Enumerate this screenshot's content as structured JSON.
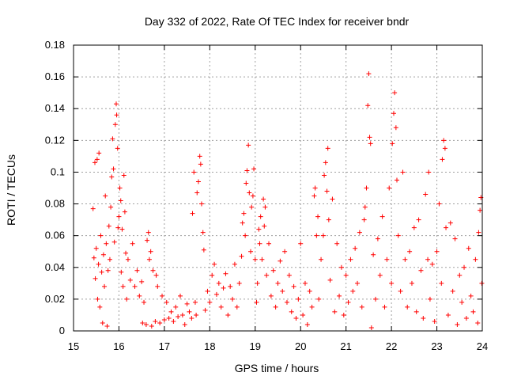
{
  "chart_data": {
    "type": "scatter",
    "title": "Day 332 of 2022, Rate Of TEC Index for receiver bndr",
    "xlabel": "GPS time / hours",
    "ylabel": "ROTI / TECUs",
    "xlim": [
      15,
      24
    ],
    "ylim": [
      0,
      0.18
    ],
    "x_ticks": [
      "15",
      "16",
      "17",
      "18",
      "19",
      "20",
      "21",
      "22",
      "23",
      "24"
    ],
    "y_ticks": [
      "0",
      "0.02",
      "0.04",
      "0.06",
      "0.08",
      "0.1",
      "0.12",
      "0.14",
      "0.16",
      "0.18"
    ],
    "grid": true,
    "marker": "+",
    "color": "#ff0000",
    "points": [
      [
        15.43,
        0.077
      ],
      [
        15.45,
        0.046
      ],
      [
        15.47,
        0.106
      ],
      [
        15.48,
        0.033
      ],
      [
        15.5,
        0.052
      ],
      [
        15.52,
        0.108
      ],
      [
        15.53,
        0.02
      ],
      [
        15.55,
        0.042
      ],
      [
        15.56,
        0.112
      ],
      [
        15.58,
        0.015
      ],
      [
        15.6,
        0.06
      ],
      [
        15.62,
        0.037
      ],
      [
        15.64,
        0.005
      ],
      [
        15.66,
        0.048
      ],
      [
        15.68,
        0.028
      ],
      [
        15.7,
        0.085
      ],
      [
        15.72,
        0.055
      ],
      [
        15.74,
        0.003
      ],
      [
        15.76,
        0.038
      ],
      [
        15.78,
        0.066
      ],
      [
        15.8,
        0.045
      ],
      [
        15.82,
        0.078
      ],
      [
        15.84,
        0.097
      ],
      [
        15.86,
        0.121
      ],
      [
        15.88,
        0.102
      ],
      [
        15.9,
        0.056
      ],
      [
        15.92,
        0.13
      ],
      [
        15.94,
        0.143
      ],
      [
        15.95,
        0.136
      ],
      [
        15.97,
        0.115
      ],
      [
        15.98,
        0.065
      ],
      [
        16.0,
        0.072
      ],
      [
        16.02,
        0.09
      ],
      [
        16.04,
        0.082
      ],
      [
        16.05,
        0.037
      ],
      [
        16.07,
        0.064
      ],
      [
        16.09,
        0.028
      ],
      [
        16.11,
        0.098
      ],
      [
        16.13,
        0.075
      ],
      [
        16.15,
        0.049
      ],
      [
        16.17,
        0.02
      ],
      [
        16.2,
        0.045
      ],
      [
        16.25,
        0.032
      ],
      [
        16.3,
        0.055
      ],
      [
        16.35,
        0.028
      ],
      [
        16.4,
        0.038
      ],
      [
        16.45,
        0.022
      ],
      [
        16.5,
        0.031
      ],
      [
        16.52,
        0.005
      ],
      [
        16.55,
        0.018
      ],
      [
        16.6,
        0.004
      ],
      [
        16.62,
        0.057
      ],
      [
        16.65,
        0.062
      ],
      [
        16.67,
        0.045
      ],
      [
        16.7,
        0.05
      ],
      [
        16.72,
        0.003
      ],
      [
        16.75,
        0.038
      ],
      [
        16.8,
        0.006
      ],
      [
        16.82,
        0.035
      ],
      [
        16.85,
        0.028
      ],
      [
        16.9,
        0.005
      ],
      [
        16.95,
        0.022
      ],
      [
        17.0,
        0.007
      ],
      [
        17.05,
        0.018
      ],
      [
        17.1,
        0.008
      ],
      [
        17.15,
        0.012
      ],
      [
        17.2,
        0.006
      ],
      [
        17.25,
        0.015
      ],
      [
        17.3,
        0.009
      ],
      [
        17.35,
        0.022
      ],
      [
        17.4,
        0.01
      ],
      [
        17.45,
        0.004
      ],
      [
        17.5,
        0.017
      ],
      [
        17.55,
        0.012
      ],
      [
        17.6,
        0.008
      ],
      [
        17.62,
        0.074
      ],
      [
        17.65,
        0.1
      ],
      [
        17.68,
        0.018
      ],
      [
        17.7,
        0.01
      ],
      [
        17.72,
        0.087
      ],
      [
        17.75,
        0.094
      ],
      [
        17.78,
        0.11
      ],
      [
        17.8,
        0.105
      ],
      [
        17.82,
        0.08
      ],
      [
        17.85,
        0.062
      ],
      [
        17.87,
        0.051
      ],
      [
        17.9,
        0.013
      ],
      [
        17.95,
        0.025
      ],
      [
        18.0,
        0.018
      ],
      [
        18.05,
        0.035
      ],
      [
        18.1,
        0.042
      ],
      [
        18.15,
        0.023
      ],
      [
        18.2,
        0.03
      ],
      [
        18.25,
        0.015
      ],
      [
        18.3,
        0.027
      ],
      [
        18.35,
        0.036
      ],
      [
        18.4,
        0.01
      ],
      [
        18.45,
        0.028
      ],
      [
        18.5,
        0.02
      ],
      [
        18.55,
        0.042
      ],
      [
        18.6,
        0.015
      ],
      [
        18.65,
        0.03
      ],
      [
        18.7,
        0.047
      ],
      [
        18.72,
        0.068
      ],
      [
        18.75,
        0.074
      ],
      [
        18.78,
        0.06
      ],
      [
        18.8,
        0.093
      ],
      [
        18.82,
        0.101
      ],
      [
        18.85,
        0.117
      ],
      [
        18.87,
        0.087
      ],
      [
        18.9,
        0.05
      ],
      [
        18.92,
        0.078
      ],
      [
        18.95,
        0.085
      ],
      [
        18.97,
        0.102
      ],
      [
        19.0,
        0.045
      ],
      [
        19.03,
        0.018
      ],
      [
        19.05,
        0.03
      ],
      [
        19.08,
        0.064
      ],
      [
        19.1,
        0.055
      ],
      [
        19.12,
        0.072
      ],
      [
        19.15,
        0.045
      ],
      [
        19.18,
        0.083
      ],
      [
        19.2,
        0.066
      ],
      [
        19.22,
        0.078
      ],
      [
        19.25,
        0.035
      ],
      [
        19.3,
        0.055
      ],
      [
        19.35,
        0.022
      ],
      [
        19.4,
        0.038
      ],
      [
        19.45,
        0.015
      ],
      [
        19.5,
        0.03
      ],
      [
        19.55,
        0.044
      ],
      [
        19.6,
        0.025
      ],
      [
        19.65,
        0.05
      ],
      [
        19.7,
        0.018
      ],
      [
        19.75,
        0.035
      ],
      [
        19.8,
        0.012
      ],
      [
        19.85,
        0.028
      ],
      [
        19.9,
        0.008
      ],
      [
        19.95,
        0.02
      ],
      [
        20.0,
        0.055
      ],
      [
        20.05,
        0.01
      ],
      [
        20.1,
        0.03
      ],
      [
        20.15,
        0.004
      ],
      [
        20.2,
        0.025
      ],
      [
        20.25,
        0.015
      ],
      [
        20.3,
        0.085
      ],
      [
        20.32,
        0.09
      ],
      [
        20.35,
        0.06
      ],
      [
        20.38,
        0.072
      ],
      [
        20.4,
        0.02
      ],
      [
        20.45,
        0.045
      ],
      [
        20.5,
        0.06
      ],
      [
        20.52,
        0.098
      ],
      [
        20.55,
        0.106
      ],
      [
        20.58,
        0.088
      ],
      [
        20.6,
        0.115
      ],
      [
        20.62,
        0.07
      ],
      [
        20.65,
        0.032
      ],
      [
        20.7,
        0.083
      ],
      [
        20.75,
        0.012
      ],
      [
        20.8,
        0.055
      ],
      [
        20.85,
        0.022
      ],
      [
        20.9,
        0.04
      ],
      [
        20.95,
        0.01
      ],
      [
        21.0,
        0.035
      ],
      [
        21.05,
        0.018
      ],
      [
        21.1,
        0.045
      ],
      [
        21.15,
        0.025
      ],
      [
        21.2,
        0.052
      ],
      [
        21.25,
        0.03
      ],
      [
        21.3,
        0.062
      ],
      [
        21.35,
        0.015
      ],
      [
        21.4,
        0.07
      ],
      [
        21.42,
        0.078
      ],
      [
        21.45,
        0.09
      ],
      [
        21.48,
        0.142
      ],
      [
        21.5,
        0.162
      ],
      [
        21.52,
        0.122
      ],
      [
        21.54,
        0.118
      ],
      [
        21.56,
        0.002
      ],
      [
        21.6,
        0.048
      ],
      [
        21.65,
        0.02
      ],
      [
        21.7,
        0.058
      ],
      [
        21.75,
        0.035
      ],
      [
        21.8,
        0.072
      ],
      [
        21.85,
        0.015
      ],
      [
        21.9,
        0.045
      ],
      [
        21.95,
        0.09
      ],
      [
        22.0,
        0.03
      ],
      [
        22.02,
        0.118
      ],
      [
        22.05,
        0.137
      ],
      [
        22.07,
        0.15
      ],
      [
        22.1,
        0.128
      ],
      [
        22.12,
        0.095
      ],
      [
        22.15,
        0.06
      ],
      [
        22.2,
        0.025
      ],
      [
        22.25,
        0.1
      ],
      [
        22.3,
        0.045
      ],
      [
        22.35,
        0.015
      ],
      [
        22.4,
        0.05
      ],
      [
        22.45,
        0.03
      ],
      [
        22.5,
        0.065
      ],
      [
        22.55,
        0.012
      ],
      [
        22.6,
        0.07
      ],
      [
        22.65,
        0.038
      ],
      [
        22.7,
        0.008
      ],
      [
        22.75,
        0.086
      ],
      [
        22.8,
        0.045
      ],
      [
        22.82,
        0.1
      ],
      [
        22.85,
        0.02
      ],
      [
        22.9,
        0.042
      ],
      [
        22.95,
        0.006
      ],
      [
        23.0,
        0.05
      ],
      [
        23.05,
        0.08
      ],
      [
        23.1,
        0.03
      ],
      [
        23.12,
        0.108
      ],
      [
        23.15,
        0.12
      ],
      [
        23.18,
        0.115
      ],
      [
        23.2,
        0.065
      ],
      [
        23.25,
        0.01
      ],
      [
        23.3,
        0.068
      ],
      [
        23.35,
        0.025
      ],
      [
        23.4,
        0.058
      ],
      [
        23.45,
        0.004
      ],
      [
        23.5,
        0.035
      ],
      [
        23.55,
        0.018
      ],
      [
        23.6,
        0.04
      ],
      [
        23.65,
        0.008
      ],
      [
        23.7,
        0.052
      ],
      [
        23.75,
        0.022
      ],
      [
        23.8,
        0.012
      ],
      [
        23.85,
        0.045
      ],
      [
        23.9,
        0.005
      ],
      [
        23.92,
        0.062
      ],
      [
        23.95,
        0.076
      ],
      [
        23.97,
        0.084
      ],
      [
        23.99,
        0.03
      ]
    ]
  }
}
